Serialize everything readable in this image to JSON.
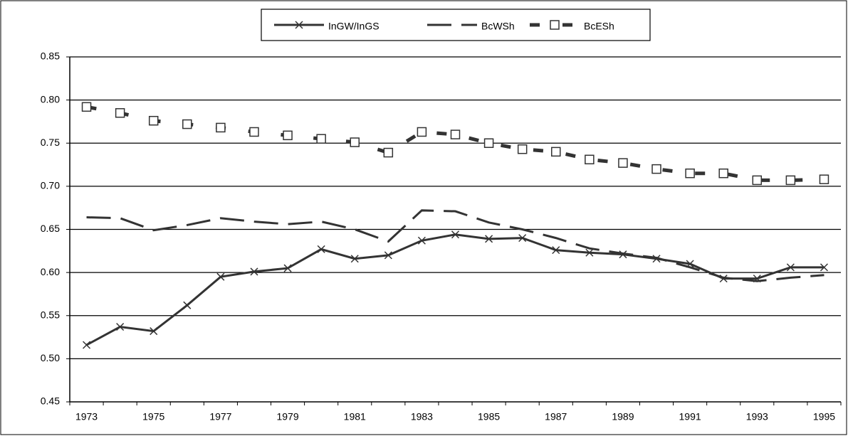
{
  "chart_data": {
    "type": "line",
    "categories": [
      "1973",
      null,
      "1975",
      null,
      "1977",
      null,
      "1979",
      null,
      "1981",
      null,
      "1983",
      null,
      "1985",
      null,
      "1987",
      null,
      "1989",
      null,
      "1991",
      null,
      "1993",
      null,
      "1995"
    ],
    "series": [
      {
        "name": "InGW/InGS",
        "color": "#333333",
        "line_style": "solid",
        "marker": "x",
        "values": [
          0.516,
          0.537,
          0.532,
          0.562,
          0.595,
          0.601,
          0.605,
          0.627,
          0.616,
          0.62,
          0.637,
          0.644,
          0.639,
          0.64,
          0.626,
          0.623,
          0.621,
          0.616,
          0.61,
          0.593,
          0.593,
          0.606,
          0.606
        ]
      },
      {
        "name": "BcWSh",
        "color": "#333333",
        "line_style": "dashed",
        "marker": "none",
        "values": [
          0.664,
          0.663,
          0.649,
          0.655,
          0.663,
          0.659,
          0.656,
          0.659,
          0.65,
          0.636,
          0.672,
          0.671,
          0.658,
          0.65,
          0.64,
          0.628,
          0.622,
          0.617,
          0.606,
          0.594,
          0.59,
          0.594,
          0.597
        ]
      },
      {
        "name": "BcESh",
        "color": "#333333",
        "line_style": "dotted",
        "marker": "square",
        "values": [
          0.792,
          0.785,
          0.776,
          0.772,
          0.768,
          0.763,
          0.759,
          0.755,
          0.751,
          0.739,
          0.763,
          0.76,
          0.75,
          0.743,
          0.74,
          0.731,
          0.727,
          0.72,
          0.715,
          0.715,
          0.707,
          0.707,
          0.708
        ]
      }
    ],
    "ylim": [
      0.45,
      0.85
    ],
    "yticks": [
      0.45,
      {
        "value": 0.5,
        "label": "0.50"
      },
      0.55,
      {
        "value": 0.6,
        "label": "0.60"
      },
      0.65,
      {
        "value": 0.7,
        "label": "0.70"
      },
      0.75,
      {
        "value": 0.8,
        "label": "0.80"
      },
      0.85
    ],
    "grid": true,
    "legend": "top"
  }
}
